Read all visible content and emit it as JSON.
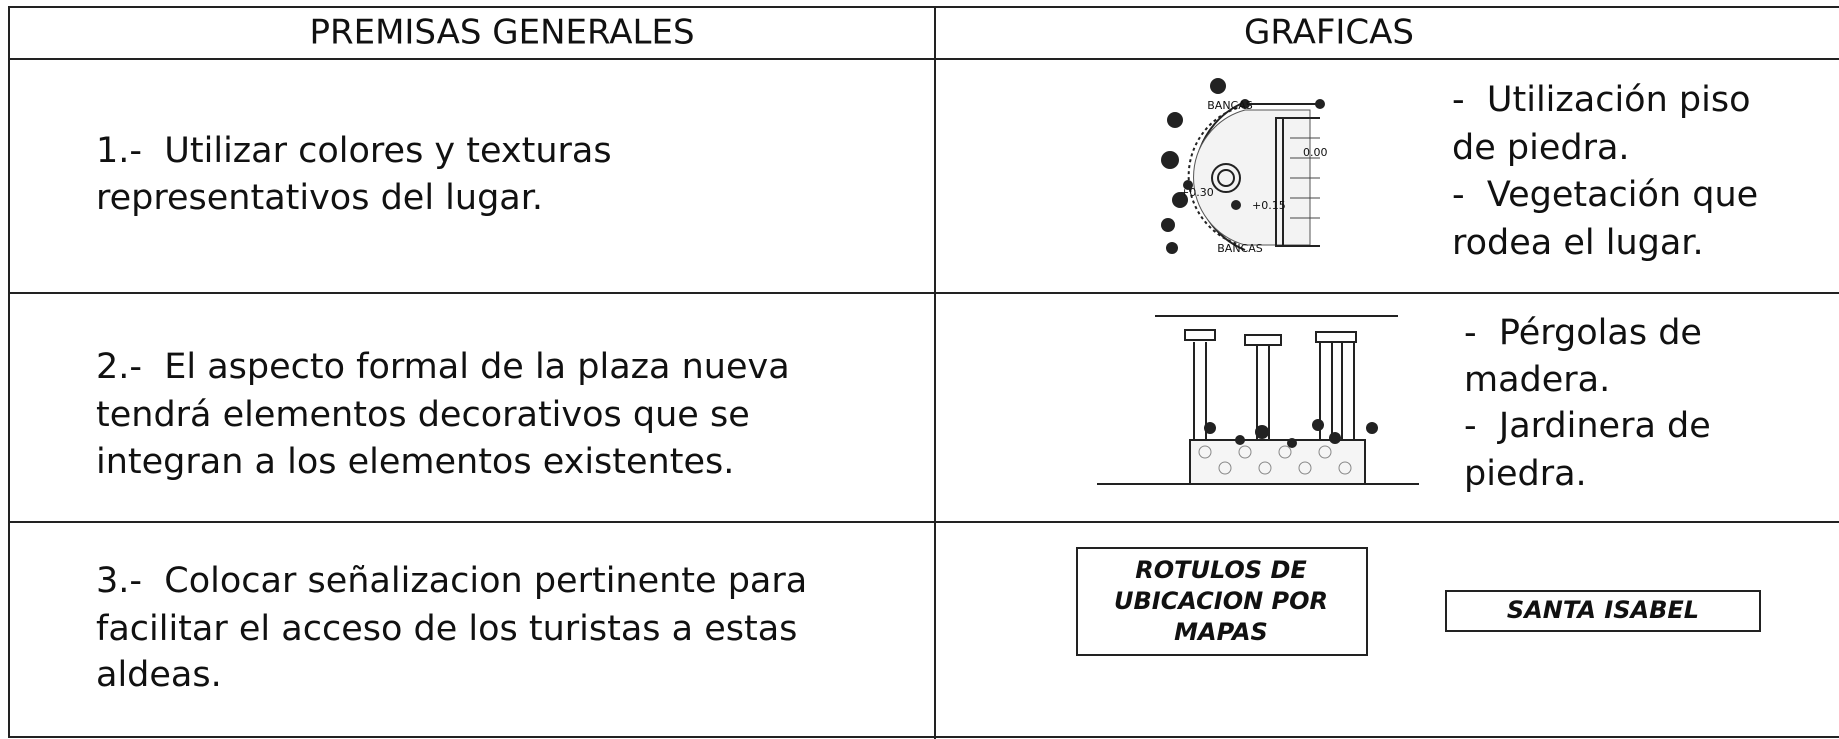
{
  "header": {
    "col1": "PREMISAS GENERALES",
    "col2": "GRAFICAS"
  },
  "rows": [
    {
      "premise": [
        "1.-  Utilizar colores y texturas",
        "representativos del lugar."
      ],
      "notes": [
        "-  Utilización piso",
        "de piedra.",
        "-  Vegetación que",
        "rodea el lugar."
      ],
      "drawing_labels": [
        "BANCAS",
        "0.00",
        "+0.30",
        "+0.15",
        "BANCAS"
      ]
    },
    {
      "premise": [
        "2.-  El aspecto formal de la plaza nueva",
        "tendrá elementos decorativos que se",
        "integran a los elementos existentes."
      ],
      "notes": [
        "-  Pérgolas de",
        "madera.",
        "-  Jardinera de",
        "piedra."
      ]
    },
    {
      "premise": [
        "3.-  Colocar señalizacion pertinente para",
        "facilitar el acceso de los turistas a estas",
        "aldeas."
      ],
      "signs": [
        [
          "ROTULOS DE",
          "UBICACION POR",
          "MAPAS"
        ],
        [
          "SANTA ISABEL"
        ]
      ]
    }
  ]
}
